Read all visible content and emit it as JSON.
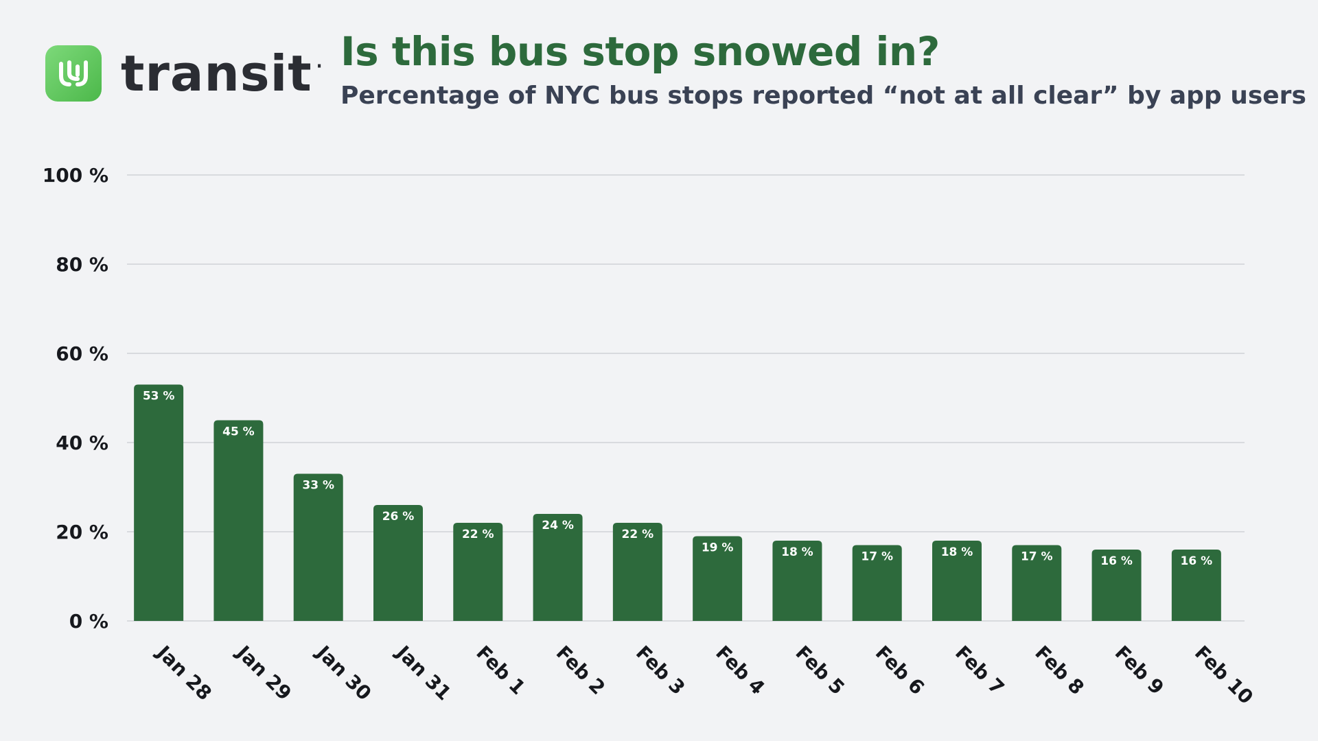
{
  "brand": {
    "name": "transit",
    "dot": "·",
    "logo_icon": "transit-logo-icon",
    "accent": "#4cb84a"
  },
  "header": {
    "title": "Is this bus stop snowed in?",
    "subtitle": "Percentage of NYC bus stops reported “not at all clear” by app users"
  },
  "colors": {
    "bar": "#2d6a3c",
    "title": "#2d6a3c",
    "subtitle": "#3a4254",
    "grid": "#cfd2d6",
    "background": "#f2f3f5"
  },
  "chart_data": {
    "type": "bar",
    "title": "Is this bus stop snowed in?",
    "subtitle": "Percentage of NYC bus stops reported “not at all clear” by app users",
    "categories": [
      "Jan 28",
      "Jan 29",
      "Jan 30",
      "Jan 31",
      "Feb 1",
      "Feb 2",
      "Feb 3",
      "Feb 4",
      "Feb 5",
      "Feb 6",
      "Feb 7",
      "Feb 8",
      "Feb 9",
      "Feb 10"
    ],
    "values": [
      53,
      45,
      33,
      26,
      22,
      24,
      22,
      19,
      18,
      17,
      18,
      17,
      16,
      16
    ],
    "value_labels": [
      "53 %",
      "45 %",
      "33 %",
      "26 %",
      "22 %",
      "24 %",
      "22 %",
      "19 %",
      "18 %",
      "17 %",
      "18 %",
      "17 %",
      "16 %",
      "16 %"
    ],
    "yticks": [
      0,
      20,
      40,
      60,
      80,
      100
    ],
    "ytick_labels": [
      "0 %",
      "20 %",
      "40 %",
      "60 %",
      "80 %",
      "100 %"
    ],
    "ylim": [
      0,
      100
    ],
    "xlabel": "",
    "ylabel": "",
    "grid": true,
    "legend": "none"
  }
}
